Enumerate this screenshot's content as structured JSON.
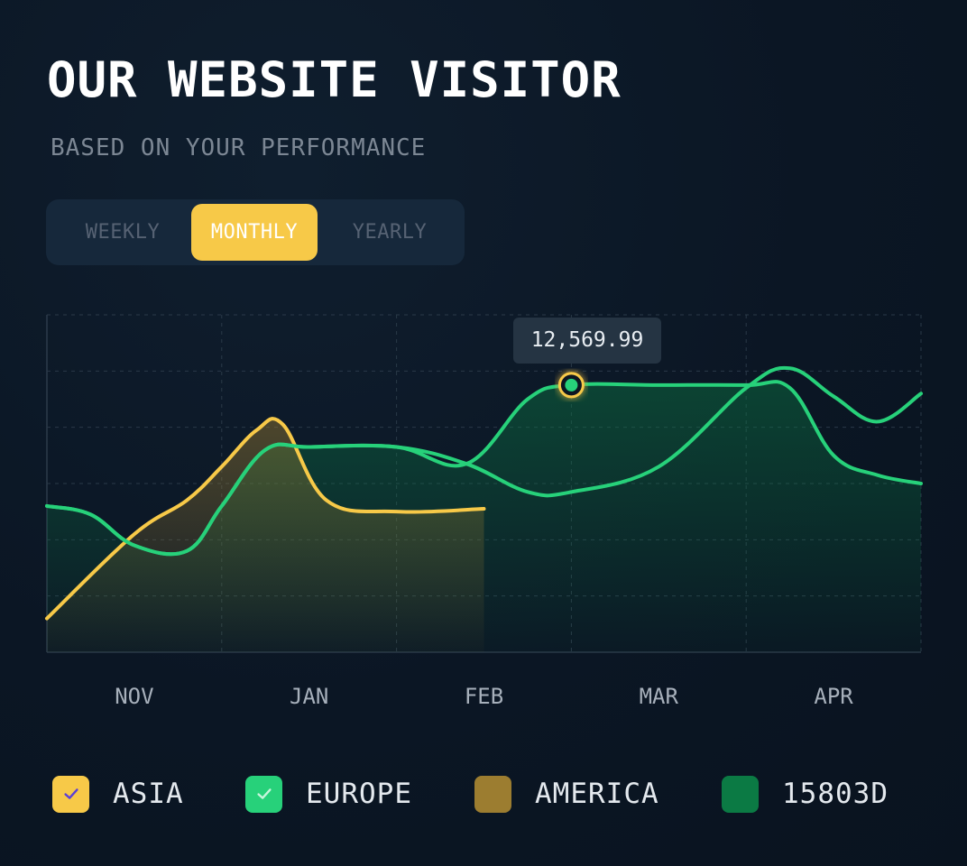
{
  "header": {
    "title": "OUR WEBSITE VISITOR",
    "subtitle": "BASED ON YOUR PERFORMANCE"
  },
  "period_toggle": {
    "options": [
      "WEEKLY",
      "MONTHLY",
      "YEARLY"
    ],
    "selected": "MONTHLY"
  },
  "tooltip": {
    "value": "12,569.99"
  },
  "legend": [
    {
      "label": "ASIA",
      "color": "#f7c948",
      "checked": true,
      "check_color": "#5b3fd6",
      "icon": "check-icon"
    },
    {
      "label": "EUROPE",
      "color": "#27d17a",
      "checked": true,
      "check_color": "#c7f5dc",
      "icon": "check-icon"
    },
    {
      "label": "AMERICA",
      "color": "#9c7d30",
      "checked": false
    },
    {
      "label": "15803D",
      "color": "#0b7a44",
      "checked": false
    }
  ],
  "chart_data": {
    "type": "line",
    "categories": [
      "NOV",
      "JAN",
      "FEB",
      "MAR",
      "APR"
    ],
    "grid": true,
    "ylim": [
      0,
      6
    ],
    "highlight": {
      "series": "EUROPE",
      "x": 3.0,
      "y": 4.75,
      "label": "12,569.99",
      "color": "#f7c948"
    },
    "series": [
      {
        "name": "ASIA",
        "color": "#f7c948",
        "fill": "#9c7d30",
        "x": [
          0.0,
          0.5,
          0.8,
          1.0,
          1.2,
          1.35,
          1.6,
          2.0,
          2.5
        ],
        "y": [
          0.6,
          2.1,
          2.7,
          3.3,
          3.95,
          4.05,
          2.7,
          2.5,
          2.55
        ]
      },
      {
        "name": "EUROPE",
        "color": "#27d17a",
        "fill": "#0b7a44",
        "x": [
          0.0,
          0.25,
          0.5,
          0.8,
          1.0,
          1.25,
          1.5,
          2.0,
          2.4,
          2.75,
          3.0,
          3.5,
          4.0,
          4.25,
          4.5,
          4.75,
          5.0
        ],
        "y": [
          2.6,
          2.45,
          1.9,
          1.8,
          2.6,
          3.6,
          3.65,
          3.65,
          3.35,
          4.5,
          4.75,
          4.75,
          4.75,
          4.7,
          3.5,
          3.15,
          3.0
        ],
        "secondary_y": [
          2.6,
          2.45,
          1.9,
          1.8,
          2.6,
          3.6,
          3.65,
          3.65,
          3.35,
          2.85,
          2.85,
          3.3,
          4.7,
          5.05,
          4.55,
          4.1,
          4.6
        ]
      }
    ]
  }
}
